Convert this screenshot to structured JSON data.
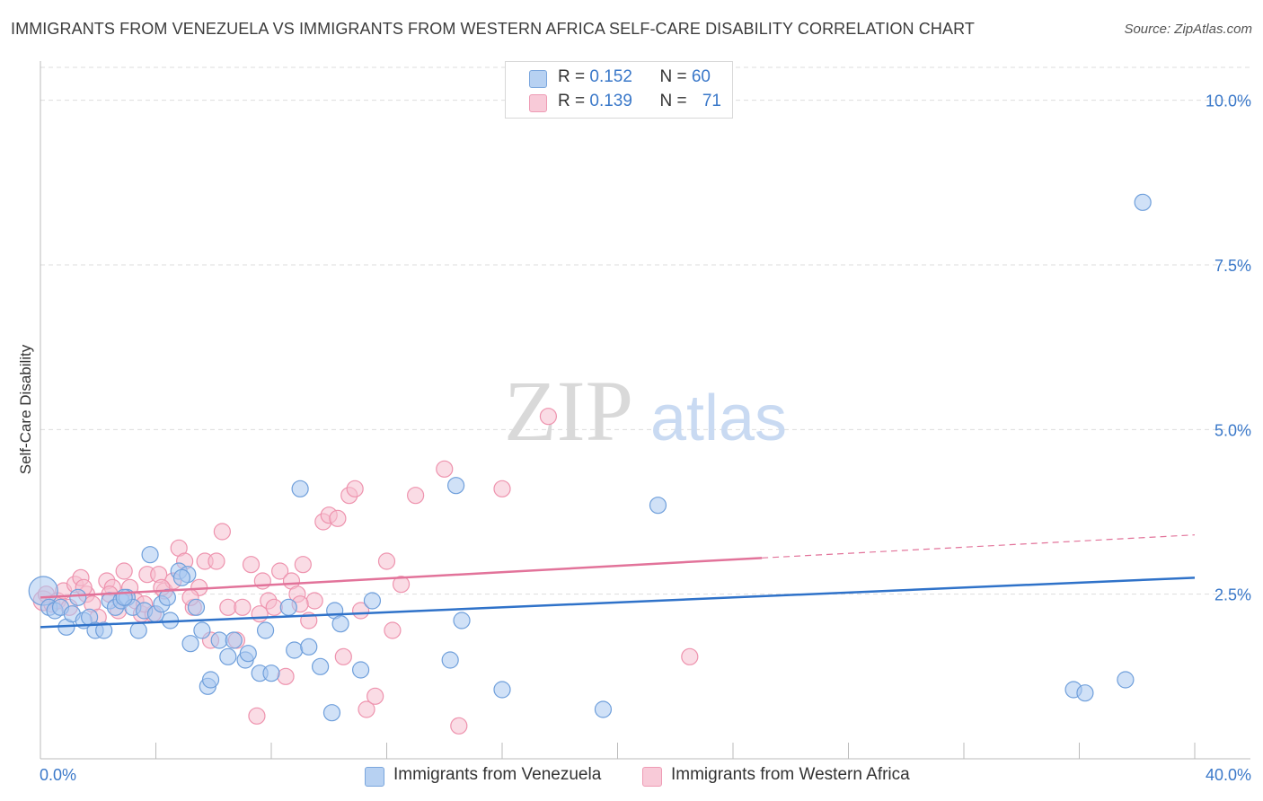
{
  "header": {
    "title": "IMMIGRANTS FROM VENEZUELA VS IMMIGRANTS FROM WESTERN AFRICA SELF-CARE DISABILITY CORRELATION CHART",
    "source": "Source: ZipAtlas.com"
  },
  "watermark": {
    "zip": "ZIP",
    "atlas": "atlas"
  },
  "legend": {
    "venezuela": {
      "r_label": "R = ",
      "r_value": "0.152",
      "n_label": "N = ",
      "n_value": "60"
    },
    "western_africa": {
      "r_label": "R = ",
      "r_value": "0.139",
      "n_label": "N = ",
      "n_value": "71"
    }
  },
  "colors": {
    "venezuela_fill": "#a9c8f0",
    "venezuela_stroke": "#6f9fdb",
    "venezuela_line": "#2f72c9",
    "africa_fill": "#f6bfd0",
    "africa_stroke": "#ee93ae",
    "africa_line": "#e2739a",
    "axis_label": "#3a78c9",
    "grid": "#dddddd"
  },
  "chart_data": {
    "type": "scatter",
    "ylabel": "Self-Care Disability",
    "xlim": [
      0,
      40
    ],
    "ylim": [
      0,
      10.5
    ],
    "x_tick_labels": [
      "0.0%",
      "40.0%"
    ],
    "y_ticks": [
      2.5,
      5.0,
      7.5,
      10.0
    ],
    "y_tick_labels": [
      "2.5%",
      "5.0%",
      "7.5%",
      "10.0%"
    ],
    "grid": true,
    "legend_position": "top-center",
    "series": [
      {
        "name": "Immigrants from Venezuela",
        "color": "#a9c8f0",
        "trend": {
          "x": [
            0,
            40
          ],
          "y": [
            2.0,
            2.75
          ],
          "dashed_from": null
        },
        "points": [
          [
            0.1,
            2.55
          ],
          [
            0.3,
            2.3
          ],
          [
            0.5,
            2.25
          ],
          [
            0.7,
            2.3
          ],
          [
            0.9,
            2.0
          ],
          [
            1.1,
            2.2
          ],
          [
            1.3,
            2.45
          ],
          [
            1.5,
            2.1
          ],
          [
            1.7,
            2.15
          ],
          [
            1.9,
            1.95
          ],
          [
            2.2,
            1.95
          ],
          [
            2.4,
            2.4
          ],
          [
            2.6,
            2.3
          ],
          [
            2.8,
            2.4
          ],
          [
            3.0,
            2.45
          ],
          [
            3.2,
            2.3
          ],
          [
            3.4,
            1.95
          ],
          [
            3.6,
            2.25
          ],
          [
            3.8,
            3.1
          ],
          [
            4.0,
            2.2
          ],
          [
            4.2,
            2.35
          ],
          [
            4.4,
            2.45
          ],
          [
            4.5,
            2.1
          ],
          [
            4.8,
            2.85
          ],
          [
            5.1,
            2.8
          ],
          [
            5.2,
            1.75
          ],
          [
            5.4,
            2.3
          ],
          [
            5.6,
            1.95
          ],
          [
            5.8,
            1.1
          ],
          [
            5.9,
            1.2
          ],
          [
            6.2,
            1.8
          ],
          [
            6.5,
            1.55
          ],
          [
            6.7,
            1.8
          ],
          [
            7.1,
            1.5
          ],
          [
            7.2,
            1.6
          ],
          [
            7.6,
            1.3
          ],
          [
            7.8,
            1.95
          ],
          [
            8.0,
            1.3
          ],
          [
            8.6,
            2.3
          ],
          [
            8.8,
            1.65
          ],
          [
            9.0,
            4.1
          ],
          [
            9.3,
            1.7
          ],
          [
            9.7,
            1.4
          ],
          [
            10.1,
            0.7
          ],
          [
            10.2,
            2.25
          ],
          [
            10.4,
            2.05
          ],
          [
            11.1,
            1.35
          ],
          [
            11.5,
            2.4
          ],
          [
            14.2,
            1.5
          ],
          [
            14.4,
            4.15
          ],
          [
            14.6,
            2.1
          ],
          [
            16.0,
            1.05
          ],
          [
            19.5,
            0.75
          ],
          [
            21.4,
            3.85
          ],
          [
            35.8,
            1.05
          ],
          [
            36.2,
            1.0
          ],
          [
            37.6,
            1.2
          ],
          [
            38.2,
            8.45
          ],
          [
            4.9,
            2.75
          ],
          [
            2.9,
            2.45
          ]
        ]
      },
      {
        "name": "Immigrants from Western Africa",
        "color": "#f6bfd0",
        "trend": {
          "x": [
            0,
            25,
            40
          ],
          "y": [
            2.45,
            3.05,
            3.4
          ],
          "dashed_from": 25
        },
        "points": [
          [
            0.1,
            2.4
          ],
          [
            0.2,
            2.5
          ],
          [
            0.4,
            2.35
          ],
          [
            0.6,
            2.4
          ],
          [
            0.8,
            2.55
          ],
          [
            1.0,
            2.3
          ],
          [
            1.2,
            2.65
          ],
          [
            1.4,
            2.75
          ],
          [
            1.6,
            2.5
          ],
          [
            1.8,
            2.35
          ],
          [
            2.0,
            2.15
          ],
          [
            2.3,
            2.7
          ],
          [
            2.5,
            2.6
          ],
          [
            2.7,
            2.25
          ],
          [
            2.9,
            2.85
          ],
          [
            3.1,
            2.6
          ],
          [
            3.3,
            2.4
          ],
          [
            3.5,
            2.2
          ],
          [
            3.7,
            2.8
          ],
          [
            3.9,
            2.2
          ],
          [
            4.1,
            2.8
          ],
          [
            4.3,
            2.55
          ],
          [
            4.6,
            2.7
          ],
          [
            4.8,
            3.2
          ],
          [
            5.0,
            3.0
          ],
          [
            5.3,
            2.3
          ],
          [
            5.5,
            2.6
          ],
          [
            5.7,
            3.0
          ],
          [
            5.9,
            1.8
          ],
          [
            6.1,
            3.0
          ],
          [
            6.3,
            3.45
          ],
          [
            6.5,
            2.3
          ],
          [
            6.8,
            1.8
          ],
          [
            7.0,
            2.3
          ],
          [
            7.3,
            2.95
          ],
          [
            7.5,
            0.65
          ],
          [
            7.7,
            2.7
          ],
          [
            7.9,
            2.4
          ],
          [
            8.1,
            2.3
          ],
          [
            8.3,
            2.85
          ],
          [
            8.5,
            1.25
          ],
          [
            8.7,
            2.7
          ],
          [
            8.9,
            2.5
          ],
          [
            9.1,
            2.95
          ],
          [
            9.3,
            2.1
          ],
          [
            9.5,
            2.4
          ],
          [
            9.8,
            3.6
          ],
          [
            10.0,
            3.7
          ],
          [
            10.3,
            3.65
          ],
          [
            10.5,
            1.55
          ],
          [
            10.7,
            4.0
          ],
          [
            10.9,
            4.1
          ],
          [
            11.1,
            2.25
          ],
          [
            11.3,
            0.75
          ],
          [
            11.6,
            0.95
          ],
          [
            12.0,
            3.0
          ],
          [
            12.5,
            2.65
          ],
          [
            13.0,
            4.0
          ],
          [
            14.0,
            4.4
          ],
          [
            14.5,
            0.5
          ],
          [
            16.0,
            4.1
          ],
          [
            17.6,
            5.2
          ],
          [
            22.5,
            1.55
          ],
          [
            1.5,
            2.6
          ],
          [
            3.6,
            2.35
          ],
          [
            4.2,
            2.6
          ],
          [
            5.2,
            2.45
          ],
          [
            7.6,
            2.2
          ],
          [
            9.0,
            2.35
          ],
          [
            2.4,
            2.5
          ],
          [
            12.2,
            1.95
          ]
        ]
      }
    ]
  },
  "bottom_legend": {
    "venezuela": "Immigrants from Venezuela",
    "western_africa": "Immigrants from Western Africa"
  }
}
